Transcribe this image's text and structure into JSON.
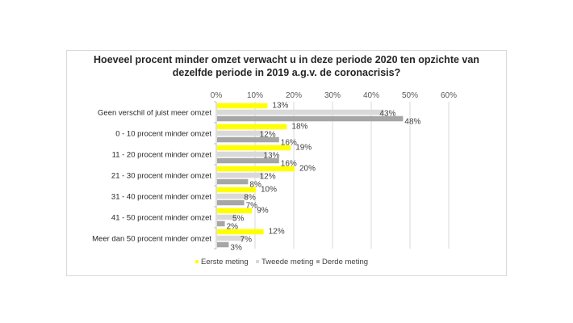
{
  "chart_data": {
    "type": "bar",
    "orientation": "horizontal",
    "title": "Hoeveel procent minder omzet verwacht u in deze periode 2020 ten opzichte van dezelfde periode in 2019 a.g.v. de coronacrisis?",
    "title_lines": [
      "Hoeveel procent minder omzet verwacht u in deze periode 2020 ten opzichte van",
      "dezelfde periode in 2019 a.g.v. de coronacrisis?"
    ],
    "xlabel": "",
    "ylabel": "",
    "xlim": [
      0,
      60
    ],
    "xticks": [
      0,
      10,
      20,
      30,
      40,
      50,
      60
    ],
    "xtick_labels": [
      "0%",
      "10%",
      "20%",
      "30%",
      "40%",
      "50%",
      "60%"
    ],
    "x_axis_position": "top",
    "grid": true,
    "legend_position": "bottom",
    "categories": [
      "Geen verschil of juist meer omzet",
      "0 - 10 procent minder omzet",
      "11 - 20 procent minder omzet",
      "21 - 30 procent minder omzet",
      "31 - 40 procent minder omzet",
      "41 - 50 procent minder omzet",
      "Meer dan 50 procent minder omzet"
    ],
    "series": [
      {
        "name": "Eerste meting",
        "color": "#ffff00",
        "values": [
          13,
          18,
          19,
          20,
          10,
          9,
          12
        ],
        "labels": [
          "13%",
          "18%",
          "19%",
          "20%",
          "10%",
          "9%",
          "12%"
        ]
      },
      {
        "name": "Tweede meting",
        "color": "#d9d9d9",
        "values": [
          43,
          12,
          13,
          12,
          8,
          5,
          7
        ],
        "labels": [
          "43%",
          "12%",
          "13%",
          "12%",
          "8%",
          "5%",
          "7%"
        ]
      },
      {
        "name": "Derde meting",
        "color": "#a6a6a6",
        "values": [
          48,
          16,
          16,
          8,
          7,
          2,
          3
        ],
        "labels": [
          "48%",
          "16%",
          "16%",
          "8%",
          "7%",
          "2%",
          "3%"
        ]
      }
    ]
  }
}
